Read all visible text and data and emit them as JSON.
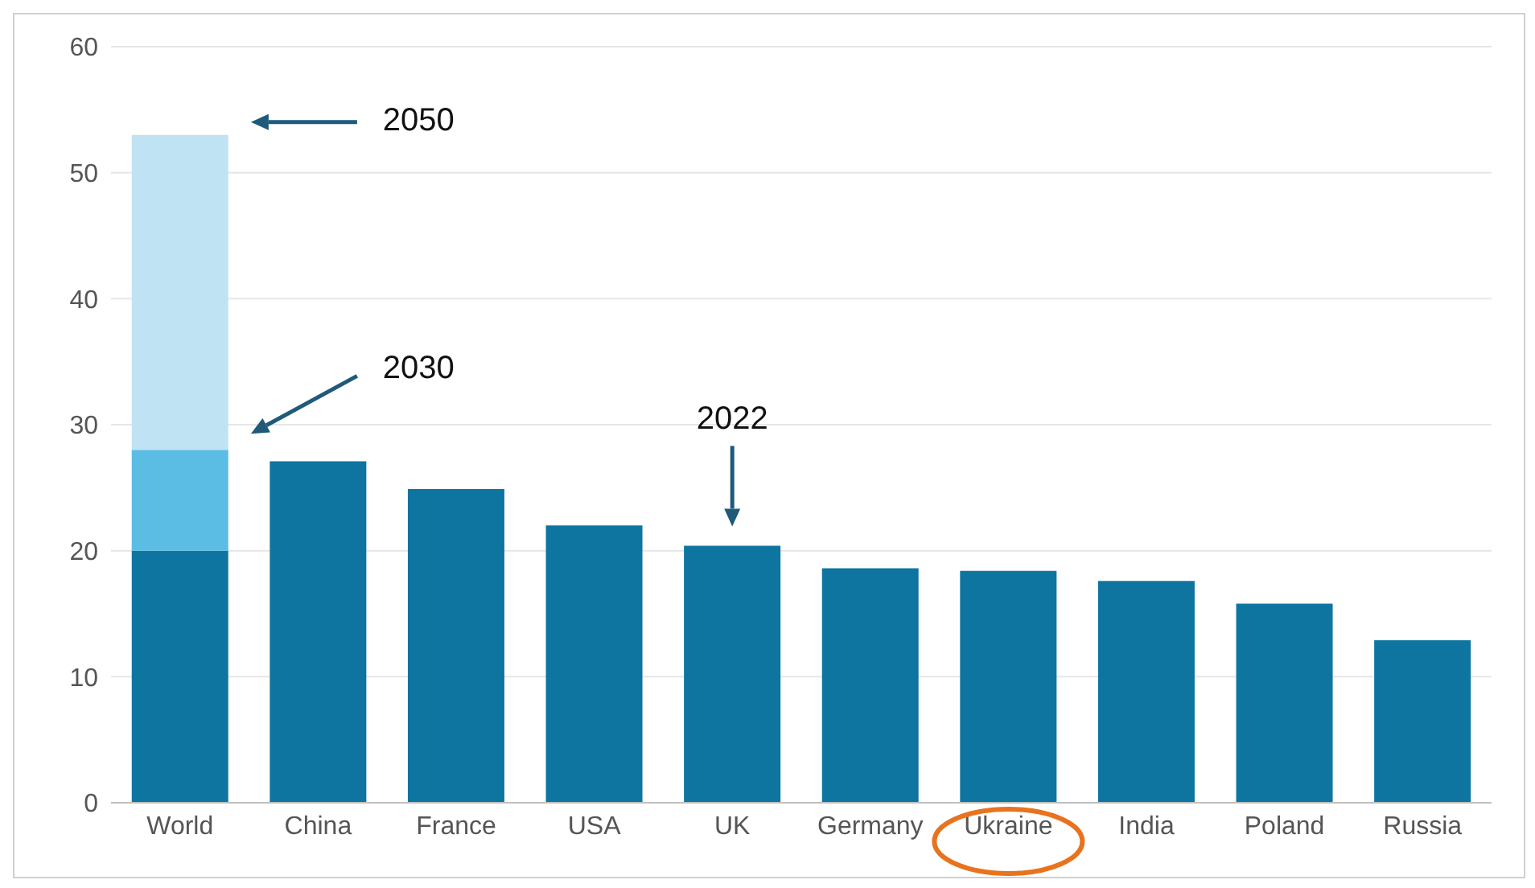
{
  "chart_data": {
    "type": "bar",
    "stacked": true,
    "categories": [
      "World",
      "China",
      "France",
      "USA",
      "UK",
      "Germany",
      "Ukraine",
      "India",
      "Poland",
      "Russia"
    ],
    "series": [
      {
        "color": "#0e75a0",
        "values": [
          20,
          27.1,
          24.9,
          22.0,
          20.4,
          18.6,
          18.4,
          17.6,
          15.8,
          12.9
        ]
      },
      {
        "color": "#5bbce4",
        "values": [
          8,
          null,
          null,
          null,
          null,
          null,
          null,
          null,
          null,
          null
        ]
      },
      {
        "color": "#bfe3f3",
        "values": [
          25,
          null,
          null,
          null,
          null,
          null,
          null,
          null,
          null,
          null
        ]
      }
    ],
    "ylim": [
      0,
      60
    ],
    "yticks": [
      0,
      10,
      20,
      30,
      40,
      50,
      60
    ],
    "grid": "y",
    "annotations": [
      "2050",
      "2030",
      "2022"
    ]
  }
}
